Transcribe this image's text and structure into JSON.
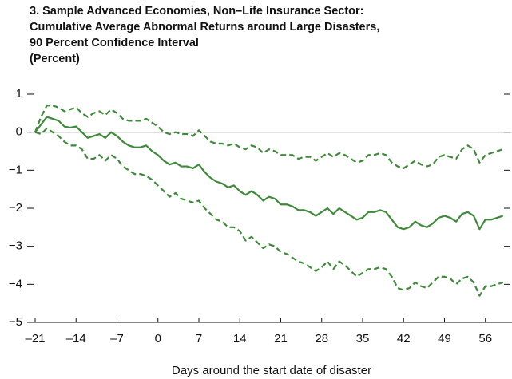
{
  "chart_data": {
    "type": "line",
    "title": [
      "3. Sample Advanced Economies, Non–Life Insurance Sector:",
      "Cumulative Average Abnormal Returns around Large Disasters,",
      "90 Percent Confidence Interval"
    ],
    "subtitle": "(Percent)",
    "x_label": "Days around the start date of disaster",
    "x": [
      -21,
      -20,
      -19,
      -18,
      -17,
      -16,
      -15,
      -14,
      -13,
      -12,
      -11,
      -10,
      -9,
      -8,
      -7,
      -6,
      -5,
      -4,
      -3,
      -2,
      -1,
      0,
      1,
      2,
      3,
      4,
      5,
      6,
      7,
      8,
      9,
      10,
      11,
      12,
      13,
      14,
      15,
      16,
      17,
      18,
      19,
      20,
      21,
      22,
      23,
      24,
      25,
      26,
      27,
      28,
      29,
      30,
      31,
      32,
      33,
      34,
      35,
      36,
      37,
      38,
      39,
      40,
      41,
      42,
      43,
      44,
      45,
      46,
      47,
      48,
      49,
      50,
      51,
      52,
      53,
      54,
      55,
      56,
      57,
      58,
      59
    ],
    "series": [
      {
        "color": "#3f8a3a",
        "dashed": false,
        "values": [
          0,
          0.2,
          0.4,
          0.35,
          0.3,
          0.15,
          0.12,
          0.15,
          0.0,
          -0.15,
          -0.1,
          -0.05,
          -0.15,
          0.0,
          -0.1,
          -0.25,
          -0.35,
          -0.4,
          -0.4,
          -0.35,
          -0.5,
          -0.6,
          -0.75,
          -0.85,
          -0.8,
          -0.9,
          -0.9,
          -0.95,
          -0.85,
          -1.05,
          -1.2,
          -1.3,
          -1.35,
          -1.45,
          -1.4,
          -1.55,
          -1.65,
          -1.55,
          -1.65,
          -1.8,
          -1.7,
          -1.75,
          -1.9,
          -1.9,
          -1.95,
          -2.05,
          -2.05,
          -2.1,
          -2.2,
          -2.1,
          -2.0,
          -2.15,
          -2.0,
          -2.1,
          -2.2,
          -2.3,
          -2.25,
          -2.1,
          -2.1,
          -2.05,
          -2.1,
          -2.3,
          -2.5,
          -2.55,
          -2.5,
          -2.35,
          -2.45,
          -2.5,
          -2.4,
          -2.25,
          -2.2,
          -2.25,
          -2.35,
          -2.15,
          -2.1,
          -2.2,
          -2.55,
          -2.3,
          -2.3,
          -2.25,
          -2.2
        ]
      },
      {
        "color": "#3f8a3a",
        "dashed": true,
        "values": [
          0,
          0.4,
          0.7,
          0.7,
          0.65,
          0.55,
          0.6,
          0.65,
          0.5,
          0.4,
          0.5,
          0.55,
          0.45,
          0.6,
          0.5,
          0.35,
          0.3,
          0.3,
          0.3,
          0.35,
          0.25,
          0.15,
          0.0,
          -0.05,
          0.0,
          -0.05,
          -0.05,
          -0.1,
          0.05,
          -0.1,
          -0.25,
          -0.3,
          -0.3,
          -0.35,
          -0.3,
          -0.4,
          -0.45,
          -0.35,
          -0.4,
          -0.55,
          -0.45,
          -0.5,
          -0.6,
          -0.6,
          -0.6,
          -0.7,
          -0.65,
          -0.65,
          -0.75,
          -0.65,
          -0.55,
          -0.65,
          -0.55,
          -0.6,
          -0.7,
          -0.8,
          -0.75,
          -0.6,
          -0.6,
          -0.55,
          -0.6,
          -0.8,
          -0.9,
          -0.95,
          -0.85,
          -0.75,
          -0.85,
          -0.9,
          -0.85,
          -0.65,
          -0.6,
          -0.65,
          -0.7,
          -0.45,
          -0.35,
          -0.45,
          -0.8,
          -0.6,
          -0.55,
          -0.5,
          -0.45
        ]
      },
      {
        "color": "#3f8a3a",
        "dashed": true,
        "values": [
          0,
          -0.05,
          0.1,
          0.0,
          -0.1,
          -0.25,
          -0.35,
          -0.35,
          -0.45,
          -0.7,
          -0.7,
          -0.6,
          -0.75,
          -0.6,
          -0.7,
          -0.9,
          -1.0,
          -1.1,
          -1.1,
          -1.15,
          -1.25,
          -1.4,
          -1.55,
          -1.7,
          -1.6,
          -1.75,
          -1.8,
          -1.85,
          -1.8,
          -2.0,
          -2.15,
          -2.3,
          -2.35,
          -2.5,
          -2.5,
          -2.6,
          -2.85,
          -2.75,
          -2.9,
          -3.05,
          -2.95,
          -3.0,
          -3.15,
          -3.2,
          -3.3,
          -3.4,
          -3.45,
          -3.55,
          -3.65,
          -3.55,
          -3.4,
          -3.6,
          -3.4,
          -3.5,
          -3.65,
          -3.8,
          -3.7,
          -3.6,
          -3.6,
          -3.55,
          -3.6,
          -3.8,
          -4.1,
          -4.15,
          -4.1,
          -3.95,
          -4.05,
          -4.1,
          -3.95,
          -3.8,
          -3.8,
          -3.85,
          -4.0,
          -3.85,
          -3.8,
          -3.95,
          -4.3,
          -4.05,
          -4.05,
          -4.0,
          -3.95
        ]
      }
    ],
    "xlim": [
      -21,
      60
    ],
    "ylim": [
      -5,
      1
    ],
    "xticks": [
      {
        "value": -21,
        "label": "–21"
      },
      {
        "value": -14,
        "label": "–14"
      },
      {
        "value": -7,
        "label": "–7"
      },
      0,
      7,
      14,
      21,
      28,
      35,
      42,
      49,
      56
    ],
    "yticks": [
      1,
      0,
      {
        "value": -1,
        "label": "−1"
      },
      {
        "value": -2,
        "label": "−2"
      },
      {
        "value": -3,
        "label": "−3"
      },
      {
        "value": -4,
        "label": "−4"
      },
      {
        "value": -5,
        "label": "−5"
      }
    ],
    "zero_line": true
  }
}
